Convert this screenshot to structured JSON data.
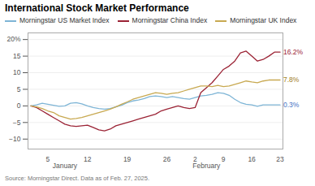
{
  "chart_data": {
    "type": "line",
    "title": "International Stock Market Performance",
    "source": "Source: Morningstar Direct. Data as of Feb. 27, 2025.",
    "categories": [
      null,
      null,
      null,
      "5",
      null,
      null,
      null,
      null,
      null,
      null,
      "12",
      null,
      null,
      null,
      null,
      null,
      null,
      "19",
      null,
      null,
      null,
      null,
      null,
      null,
      "26",
      null,
      null,
      null,
      null,
      "2",
      null,
      null,
      null,
      null,
      "9",
      null,
      null,
      null,
      null,
      "16",
      null,
      null,
      null,
      null,
      "23"
    ],
    "series": [
      {
        "name": "Morningstar US Market Index",
        "color": "#7eb5d6",
        "values": [
          0.0,
          0.3,
          0.8,
          0.5,
          0.2,
          -0.1,
          0.0,
          0.8,
          1.0,
          0.6,
          0.0,
          -0.5,
          -0.8,
          -1.0,
          -0.8,
          -0.3,
          0.2,
          1.0,
          1.5,
          1.8,
          2.2,
          2.8,
          3.0,
          2.8,
          2.5,
          2.8,
          2.5,
          2.2,
          2.0,
          2.5,
          3.0,
          3.2,
          3.5,
          4.0,
          3.8,
          3.2,
          2.0,
          1.0,
          0.5,
          0.3,
          -0.1,
          0.3,
          0.3,
          0.3,
          0.3
        ]
      },
      {
        "name": "Morningstar China Index",
        "color": "#9b2335",
        "values": [
          0.0,
          -0.5,
          -1.5,
          -2.5,
          -3.5,
          -4.5,
          -5.5,
          -6.0,
          -6.2,
          -6.0,
          -5.8,
          -6.5,
          -7.2,
          -7.5,
          -7.0,
          -6.0,
          -5.5,
          -5.0,
          -4.5,
          -4.0,
          -3.5,
          -3.0,
          -2.5,
          -1.5,
          -1.0,
          -0.5,
          0.0,
          -0.5,
          -0.8,
          -0.5,
          4.0,
          5.5,
          7.0,
          9.0,
          11.0,
          12.0,
          13.5,
          16.0,
          16.5,
          15.0,
          13.5,
          14.0,
          15.0,
          16.2,
          16.2
        ]
      },
      {
        "name": "Morningstar UK Index",
        "color": "#c8a951",
        "values": [
          0.0,
          -0.3,
          -0.8,
          -1.5,
          -2.0,
          -3.0,
          -3.5,
          -4.0,
          -3.8,
          -3.5,
          -3.0,
          -2.5,
          -2.0,
          -1.5,
          -1.0,
          -0.3,
          0.5,
          1.2,
          2.0,
          2.5,
          3.0,
          3.5,
          4.0,
          3.8,
          3.5,
          3.8,
          4.0,
          4.5,
          5.0,
          5.5,
          6.0,
          6.0,
          5.8,
          6.2,
          5.8,
          6.0,
          6.5,
          7.0,
          7.5,
          7.2,
          7.0,
          7.5,
          7.8,
          7.8,
          7.8
        ]
      }
    ],
    "ylim": [
      -13,
      22
    ],
    "yticks": [
      {
        "value": -10,
        "label": "−10"
      },
      {
        "value": -5,
        "label": "−5"
      },
      0,
      5,
      10,
      15,
      {
        "value": 20,
        "label": "20%"
      }
    ],
    "grid": true,
    "legend": "upper left",
    "annotations": [
      {
        "text": "16.2%",
        "x": 44,
        "y": 16.2,
        "color": "#9b2335"
      },
      {
        "text": "7.8%",
        "x": 44,
        "y": 7.8,
        "color": "#a07d20"
      },
      {
        "text": "0.3%",
        "x": 44,
        "y": 0.3,
        "color": "#4472c4"
      },
      {
        "text": "January",
        "x": 6
      },
      {
        "text": "February",
        "x": 31
      }
    ]
  }
}
